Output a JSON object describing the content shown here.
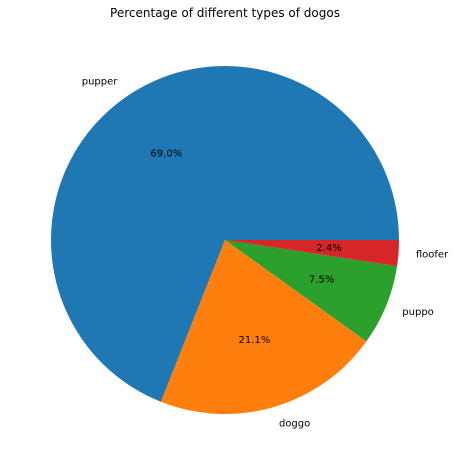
{
  "chart_data": {
    "type": "pie",
    "title": "Percentage of different types of dogos",
    "categories": [
      "pupper",
      "doggo",
      "puppo",
      "floofer"
    ],
    "values": [
      69.0,
      21.1,
      7.5,
      2.4
    ],
    "percent_labels": [
      "69.0%",
      "21.1%",
      "7.5%",
      "2.4%"
    ],
    "colors": [
      "#1f77b4",
      "#ff7f0e",
      "#2ca02c",
      "#d62728"
    ],
    "start_angle_deg": 0,
    "direction": "counterclockwise",
    "legend": "none"
  }
}
